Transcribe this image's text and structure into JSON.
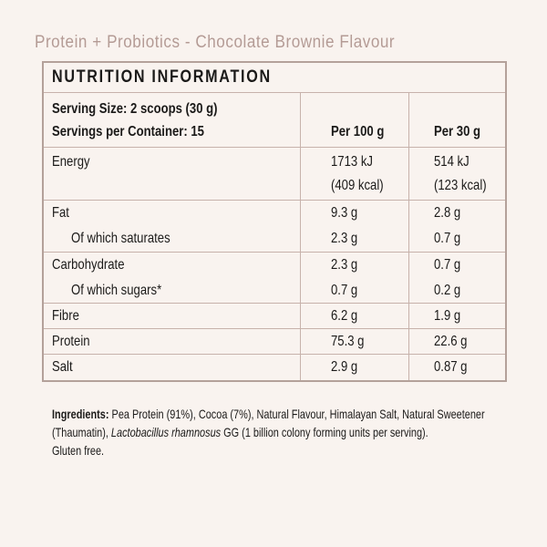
{
  "page": {
    "title": "Protein + Probiotics - Chocolate Brownie Flavour"
  },
  "colors": {
    "background": "#f9f3ef",
    "table_outer_border": "#b4a19a",
    "table_grid_line": "#c7b2ab",
    "title_text": "#b49b95",
    "body_text": "#1b1a19"
  },
  "table": {
    "title": "NUTRITION INFORMATION",
    "serving": {
      "size": "Serving Size: 2 scoops (30 g)",
      "per_container": "Servings per Container: 15",
      "col_per_100g": "Per 100 g",
      "col_per_30g": "Per 30 g"
    },
    "groups": [
      {
        "labels": [
          "Energy"
        ],
        "per100": [
          "1713 kJ",
          "(409 kcal)"
        ],
        "per30": [
          "514 kJ",
          "(123 kcal)"
        ]
      },
      {
        "labels": [
          "Fat",
          "Of which saturates"
        ],
        "per100": [
          "9.3 g",
          "2.3 g"
        ],
        "per30": [
          "2.8 g",
          "0.7 g"
        ]
      },
      {
        "labels": [
          "Carbohydrate",
          "Of which sugars*"
        ],
        "per100": [
          "2.3 g",
          "0.7 g"
        ],
        "per30": [
          "0.7 g",
          "0.2 g"
        ]
      },
      {
        "labels": [
          "Fibre"
        ],
        "per100": [
          "6.2 g"
        ],
        "per30": [
          "1.9 g"
        ]
      },
      {
        "labels": [
          "Protein"
        ],
        "per100": [
          "75.3 g"
        ],
        "per30": [
          "22.6 g"
        ]
      },
      {
        "labels": [
          "Salt"
        ],
        "per100": [
          "2.9 g"
        ],
        "per30": [
          "0.87 g"
        ]
      }
    ]
  },
  "ingredients": {
    "label": "Ingredients:",
    "line1_rest": " Pea Protein (91%), Cocoa (7%), Natural Flavour, Himalayan Salt, Natural Sweetener",
    "line2_pre": "(Thaumatin), ",
    "line2_italic": "Lactobacillus rhamnosus",
    "line2_post": " GG (1 billion colony forming units per serving).",
    "line3": "Gluten free."
  }
}
